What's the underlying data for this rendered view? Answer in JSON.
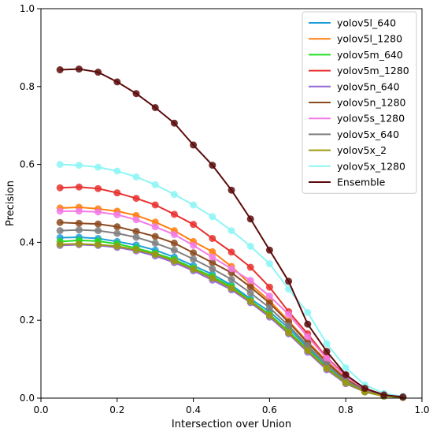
{
  "chart_data": {
    "type": "line",
    "title": "",
    "xlabel": "Intersection over Union",
    "ylabel": "Precision",
    "xlim": [
      0,
      1
    ],
    "ylim": [
      0,
      1
    ],
    "xticks": [
      0.0,
      0.2,
      0.4,
      0.6,
      0.8,
      1.0
    ],
    "yticks": [
      0.0,
      0.2,
      0.4,
      0.6,
      0.8,
      1.0
    ],
    "xtick_labels": [
      "0.0",
      "0.2",
      "0.4",
      "0.6",
      "0.8",
      "1.0"
    ],
    "ytick_labels": [
      "0.0",
      "0.2",
      "0.4",
      "0.6",
      "0.8",
      "1.0"
    ],
    "grid": false,
    "legend_position": "top-right",
    "x": [
      0.05,
      0.1,
      0.15,
      0.2,
      0.25,
      0.3,
      0.35,
      0.4,
      0.45,
      0.5,
      0.55,
      0.6,
      0.65,
      0.7,
      0.75,
      0.8,
      0.85,
      0.9,
      0.95
    ],
    "series": [
      {
        "name": "yolov5l_640",
        "color": "#1f9fd8",
        "values": [
          0.412,
          0.413,
          0.41,
          0.402,
          0.393,
          0.38,
          0.362,
          0.34,
          0.318,
          0.29,
          0.255,
          0.222,
          0.18,
          0.13,
          0.08,
          0.042,
          0.018,
          0.006,
          0.002
        ]
      },
      {
        "name": "yolov5l_1280",
        "color": "#ff7f0e",
        "values": [
          0.488,
          0.49,
          0.486,
          0.48,
          0.469,
          0.452,
          0.43,
          0.402,
          0.376,
          0.338,
          0.292,
          0.25,
          0.198,
          0.145,
          0.095,
          0.05,
          0.022,
          0.008,
          0.003
        ]
      },
      {
        "name": "yolov5m_640",
        "color": "#22dd22",
        "values": [
          0.402,
          0.405,
          0.403,
          0.396,
          0.385,
          0.372,
          0.356,
          0.334,
          0.312,
          0.286,
          0.25,
          0.215,
          0.172,
          0.125,
          0.078,
          0.04,
          0.017,
          0.006,
          0.002
        ]
      },
      {
        "name": "yolov5m_1280",
        "color": "#e8312f",
        "values": [
          0.54,
          0.542,
          0.538,
          0.527,
          0.513,
          0.496,
          0.472,
          0.446,
          0.41,
          0.375,
          0.336,
          0.285,
          0.222,
          0.165,
          0.104,
          0.058,
          0.025,
          0.009,
          0.003
        ]
      },
      {
        "name": "yolov5n_640",
        "color": "#9467d6",
        "values": [
          0.392,
          0.394,
          0.392,
          0.387,
          0.378,
          0.365,
          0.348,
          0.327,
          0.303,
          0.278,
          0.245,
          0.208,
          0.165,
          0.118,
          0.073,
          0.037,
          0.016,
          0.005,
          0.002
        ]
      },
      {
        "name": "yolov5n_1280",
        "color": "#8c4a1e",
        "values": [
          0.451,
          0.449,
          0.447,
          0.44,
          0.428,
          0.415,
          0.398,
          0.373,
          0.348,
          0.322,
          0.285,
          0.244,
          0.195,
          0.142,
          0.092,
          0.048,
          0.02,
          0.007,
          0.002
        ]
      },
      {
        "name": "yolov5s_1280",
        "color": "#f27ae6",
        "values": [
          0.48,
          0.48,
          0.478,
          0.471,
          0.458,
          0.44,
          0.42,
          0.392,
          0.362,
          0.332,
          0.302,
          0.262,
          0.215,
          0.158,
          0.102,
          0.055,
          0.024,
          0.008,
          0.003
        ]
      },
      {
        "name": "yolov5x_640",
        "color": "#7f7f7f",
        "values": [
          0.43,
          0.432,
          0.43,
          0.423,
          0.413,
          0.398,
          0.38,
          0.357,
          0.332,
          0.305,
          0.27,
          0.232,
          0.186,
          0.135,
          0.086,
          0.045,
          0.019,
          0.006,
          0.002
        ]
      },
      {
        "name": "yolov5x_2",
        "color": "#9a9a0e",
        "values": [
          0.395,
          0.396,
          0.394,
          0.39,
          0.381,
          0.369,
          0.352,
          0.331,
          0.308,
          0.282,
          0.248,
          0.212,
          0.168,
          0.122,
          0.076,
          0.039,
          0.016,
          0.005,
          0.002
        ]
      },
      {
        "name": "yolov5x_1280",
        "color": "#8df5f5",
        "values": [
          0.6,
          0.598,
          0.593,
          0.583,
          0.568,
          0.548,
          0.523,
          0.496,
          0.466,
          0.43,
          0.39,
          0.345,
          0.28,
          0.22,
          0.14,
          0.078,
          0.034,
          0.012,
          0.004
        ]
      },
      {
        "name": "Ensemble",
        "color": "#5a0b0b",
        "values": [
          0.843,
          0.845,
          0.837,
          0.812,
          0.782,
          0.746,
          0.706,
          0.65,
          0.598,
          0.534,
          0.46,
          0.38,
          0.3,
          0.19,
          0.12,
          0.06,
          0.025,
          0.008,
          0.003
        ]
      }
    ]
  }
}
